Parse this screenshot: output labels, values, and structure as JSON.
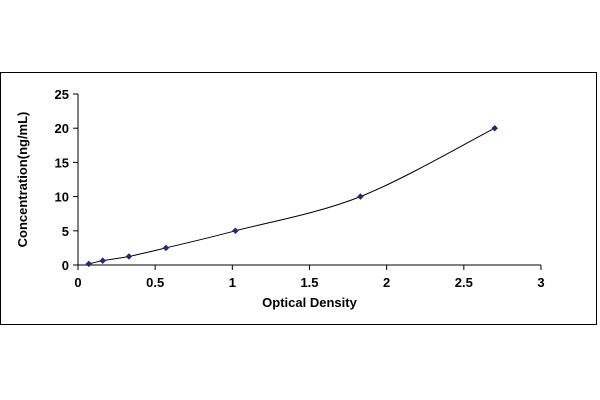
{
  "chart_data": {
    "type": "scatter",
    "title": "",
    "xlabel": "Optical Density",
    "ylabel": "Concentration(ng/mL)",
    "xlim": [
      0,
      3
    ],
    "ylim": [
      0,
      25
    ],
    "x_ticks": [
      "0",
      "0.5",
      "1",
      "1.5",
      "2",
      "2.5",
      "3"
    ],
    "y_ticks": [
      "0",
      "5",
      "10",
      "15",
      "20",
      "25"
    ],
    "grid": false,
    "legend": "none",
    "series": [
      {
        "marker": "diamond",
        "smooth_line": true,
        "color": "#1f2a7a",
        "points": [
          {
            "x": 0.07,
            "y": 0.16
          },
          {
            "x": 0.16,
            "y": 0.63
          },
          {
            "x": 0.33,
            "y": 1.25
          },
          {
            "x": 0.57,
            "y": 2.5
          },
          {
            "x": 1.02,
            "y": 5.0
          },
          {
            "x": 1.83,
            "y": 10.0
          },
          {
            "x": 2.7,
            "y": 20.0
          }
        ]
      }
    ]
  }
}
